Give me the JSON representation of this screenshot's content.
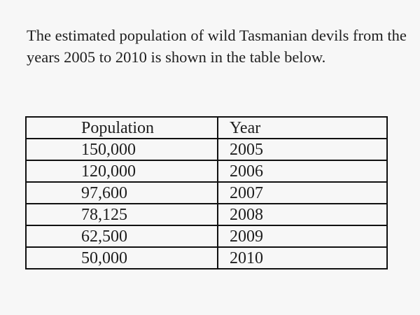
{
  "intro_text": "The estimated population of wild Tasmanian devils from the years 2005 to 2010 is shown in the table below.",
  "table": {
    "headers": {
      "population": "Population",
      "year": "Year"
    },
    "rows": [
      {
        "population": "150,000",
        "year": "2005"
      },
      {
        "population": "120,000",
        "year": "2006"
      },
      {
        "population": "97,600",
        "year": "2007"
      },
      {
        "population": "78,125",
        "year": "2008"
      },
      {
        "population": "62,500",
        "year": "2009"
      },
      {
        "population": "50,000",
        "year": "2010"
      }
    ]
  }
}
